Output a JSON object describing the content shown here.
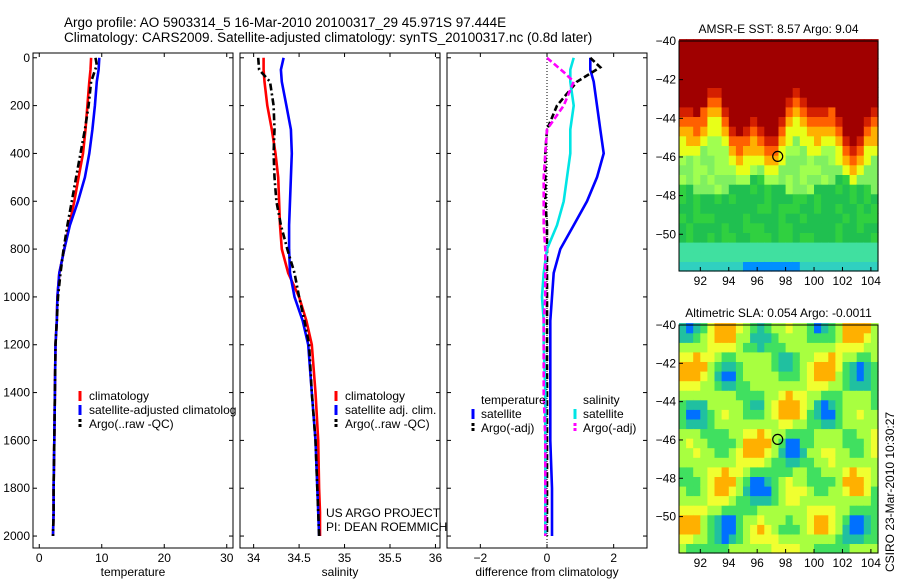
{
  "figure": {
    "title_line1": "Argo profile: AO 5903314_5 16-Mar-2010 20100317_29 45.971S 97.444E",
    "title_line2": "Climatology: CARS2009. Satellite-adjusted climatology: synTS_20100317.nc (0.8d later)",
    "side_label": "CSIRO 23-Mar-2010 10:30:27",
    "credit_line1": "US ARGO PROJECT",
    "credit_line2": "PI: DEAN ROEMMICH"
  },
  "colors": {
    "climatology": "#ff0000",
    "satellite": "#0000ff",
    "argo": "#000000",
    "salinity_satellite": "#00e5e5",
    "salinity_argo": "#ff00ff"
  },
  "chart_data": [
    {
      "type": "line",
      "xlabel": "temperature",
      "ylabel": "",
      "xlim": [
        -1,
        31
      ],
      "ylim": [
        2050,
        -20
      ],
      "xticks": [
        0,
        10,
        20,
        30
      ],
      "yticks": [
        0,
        200,
        400,
        600,
        800,
        1000,
        1200,
        1400,
        1600,
        1800,
        2000
      ],
      "legend": [
        "climatology",
        "satellite-adjusted climatolog",
        "Argo(..raw -QC)"
      ],
      "legend_position": "lower-right",
      "series": [
        {
          "name": "climatology",
          "color": "#ff0000",
          "style": "solid",
          "x": [
            8.3,
            8.2,
            8.0,
            7.7,
            7.4,
            7.0,
            6.3,
            5.6,
            4.8,
            4.0,
            3.2,
            2.9,
            2.8,
            2.6,
            2.5,
            2.4,
            2.3,
            2.3,
            2.2
          ],
          "y": [
            0,
            50,
            100,
            200,
            300,
            400,
            500,
            600,
            700,
            800,
            900,
            1000,
            1100,
            1200,
            1400,
            1600,
            1800,
            1900,
            2000
          ]
        },
        {
          "name": "satellite-adjusted climatology",
          "color": "#0000ff",
          "style": "solid",
          "x": [
            9.6,
            9.5,
            9.2,
            8.9,
            8.5,
            8.0,
            7.3,
            6.2,
            4.9,
            4.0,
            3.2,
            2.9,
            2.8,
            2.6,
            2.5,
            2.4,
            2.3,
            2.3,
            2.2
          ],
          "y": [
            0,
            50,
            100,
            200,
            300,
            400,
            500,
            600,
            700,
            800,
            900,
            1000,
            1100,
            1200,
            1400,
            1600,
            1800,
            1900,
            2000
          ]
        },
        {
          "name": "Argo(..raw -QC)",
          "color": "#000000",
          "style": "dashdot",
          "x": [
            9.0,
            9.2,
            8.3,
            7.9,
            7.3,
            6.6,
            5.9,
            5.2,
            4.5,
            3.9,
            3.4,
            3.0,
            2.8,
            2.6,
            2.5,
            2.4,
            2.3,
            2.3,
            2.2
          ],
          "y": [
            0,
            30,
            100,
            200,
            300,
            400,
            500,
            600,
            700,
            800,
            900,
            1000,
            1100,
            1200,
            1400,
            1600,
            1800,
            1900,
            2000
          ]
        }
      ]
    },
    {
      "type": "line",
      "xlabel": "salinity",
      "xlim": [
        33.85,
        36.05
      ],
      "ylim": [
        2050,
        -20
      ],
      "xticks": [
        34,
        34.5,
        35,
        35.5,
        36
      ],
      "legend": [
        "climatology",
        "satellite adj. clim.",
        "Argo(..raw -QC)"
      ],
      "legend_position": "lower-right",
      "series": [
        {
          "name": "climatology",
          "color": "#ff0000",
          "style": "solid",
          "x": [
            34.11,
            34.11,
            34.12,
            34.15,
            34.2,
            34.24,
            34.27,
            34.28,
            34.29,
            34.31,
            34.38,
            34.5,
            34.58,
            34.64,
            34.68,
            34.71,
            34.72,
            34.73,
            34.73
          ],
          "y": [
            0,
            50,
            100,
            200,
            300,
            400,
            500,
            600,
            700,
            800,
            900,
            1000,
            1100,
            1200,
            1400,
            1600,
            1800,
            1900,
            2000
          ]
        },
        {
          "name": "satellite adj. clim.",
          "color": "#0000ff",
          "style": "solid",
          "x": [
            34.33,
            34.3,
            34.31,
            34.36,
            34.41,
            34.42,
            34.41,
            34.4,
            34.39,
            34.39,
            34.4,
            34.45,
            34.54,
            34.6,
            34.64,
            34.68,
            34.7,
            34.71,
            34.72
          ],
          "y": [
            0,
            50,
            100,
            200,
            300,
            400,
            500,
            600,
            700,
            800,
            900,
            1000,
            1100,
            1200,
            1400,
            1600,
            1800,
            1900,
            2000
          ]
        },
        {
          "name": "Argo(..raw -QC)",
          "color": "#000000",
          "style": "dashdot",
          "x": [
            34.05,
            34.06,
            34.18,
            34.22,
            34.23,
            34.22,
            34.23,
            34.25,
            34.3,
            34.37,
            34.45,
            34.5,
            34.56,
            34.61,
            34.64,
            34.68,
            34.7,
            34.71,
            34.72
          ],
          "y": [
            0,
            50,
            100,
            200,
            300,
            400,
            500,
            600,
            700,
            800,
            900,
            1000,
            1100,
            1200,
            1400,
            1600,
            1800,
            1900,
            2000
          ]
        }
      ]
    },
    {
      "type": "line",
      "xlabel": "difference from climatology",
      "xlim": [
        -3,
        3
      ],
      "ylim": [
        2050,
        -20
      ],
      "xticks": [
        -2,
        0,
        2
      ],
      "legend_groups": {
        "temperature": [
          "satellite",
          "Argo(-adj)"
        ],
        "salinity": [
          "satellite",
          "Argo(-adj)"
        ]
      },
      "legend_position": "lower-center",
      "series": [
        {
          "name": "temperature satellite",
          "color": "#0000ff",
          "style": "solid",
          "x": [
            1.3,
            1.3,
            1.4,
            1.5,
            1.6,
            1.7,
            1.5,
            1.2,
            0.8,
            0.4,
            0.2,
            0.15,
            0.1,
            0.1,
            0.1,
            0.1,
            0.15,
            0.15,
            0.15
          ],
          "y": [
            0,
            50,
            100,
            200,
            300,
            400,
            500,
            600,
            700,
            800,
            900,
            1000,
            1100,
            1200,
            1400,
            1600,
            1800,
            1900,
            2000
          ]
        },
        {
          "name": "temperature Argo(-adj)",
          "color": "#000000",
          "style": "dashed",
          "x": [
            1.3,
            1.6,
            0.9,
            0.3,
            0.0,
            -0.05,
            -0.05,
            -0.05,
            0.0,
            0.0,
            0.0,
            0.0,
            0.0,
            0.0,
            0.0,
            0.0,
            0.0,
            0.0,
            0.0
          ],
          "y": [
            0,
            40,
            100,
            200,
            300,
            400,
            500,
            600,
            700,
            800,
            900,
            1000,
            1100,
            1200,
            1400,
            1600,
            1800,
            1900,
            2000
          ]
        },
        {
          "name": "salinity satellite",
          "color": "#00e5e5",
          "style": "solid",
          "x": [
            0.8,
            0.7,
            0.7,
            0.8,
            0.7,
            0.7,
            0.6,
            0.5,
            0.3,
            0.0,
            -0.1,
            -0.15,
            -0.1,
            -0.1,
            -0.05,
            -0.05,
            -0.05,
            -0.05,
            -0.05
          ],
          "y": [
            0,
            50,
            100,
            200,
            300,
            400,
            500,
            600,
            700,
            800,
            900,
            1000,
            1100,
            1200,
            1400,
            1600,
            1800,
            1900,
            2000
          ]
        },
        {
          "name": "salinity Argo(-adj)",
          "color": "#ff00ff",
          "style": "dashed",
          "x": [
            0.0,
            0.5,
            0.8,
            0.5,
            0.0,
            -0.05,
            -0.1,
            -0.1,
            -0.1,
            -0.05,
            -0.05,
            -0.05,
            -0.1,
            -0.1,
            -0.1,
            -0.05,
            -0.05,
            -0.05,
            -0.05
          ],
          "y": [
            0,
            60,
            100,
            200,
            300,
            400,
            500,
            600,
            700,
            800,
            900,
            1000,
            1100,
            1200,
            1400,
            1600,
            1800,
            1900,
            2000
          ]
        }
      ]
    },
    {
      "type": "heatmap",
      "title": "AMSR-E SST: 8.57 Argo: 9.04",
      "xlim": [
        90.5,
        104.5
      ],
      "ylim": [
        -51.9,
        -40
      ],
      "xticks": [
        92,
        94,
        96,
        98,
        100,
        102,
        104
      ],
      "yticks": [
        -40,
        -42,
        -44,
        -46,
        -48,
        -50
      ],
      "marker": {
        "lon": 97.444,
        "lat": -45.971
      }
    },
    {
      "type": "heatmap",
      "title": "Altimetric SLA: 0.054 Argo: -0.0011",
      "xlim": [
        90.5,
        104.5
      ],
      "ylim": [
        -51.9,
        -40
      ],
      "xticks": [
        92,
        94,
        96,
        98,
        100,
        102,
        104
      ],
      "yticks": [
        -40,
        -42,
        -44,
        -46,
        -48,
        -50
      ],
      "marker": {
        "lon": 97.444,
        "lat": -45.971
      }
    }
  ]
}
